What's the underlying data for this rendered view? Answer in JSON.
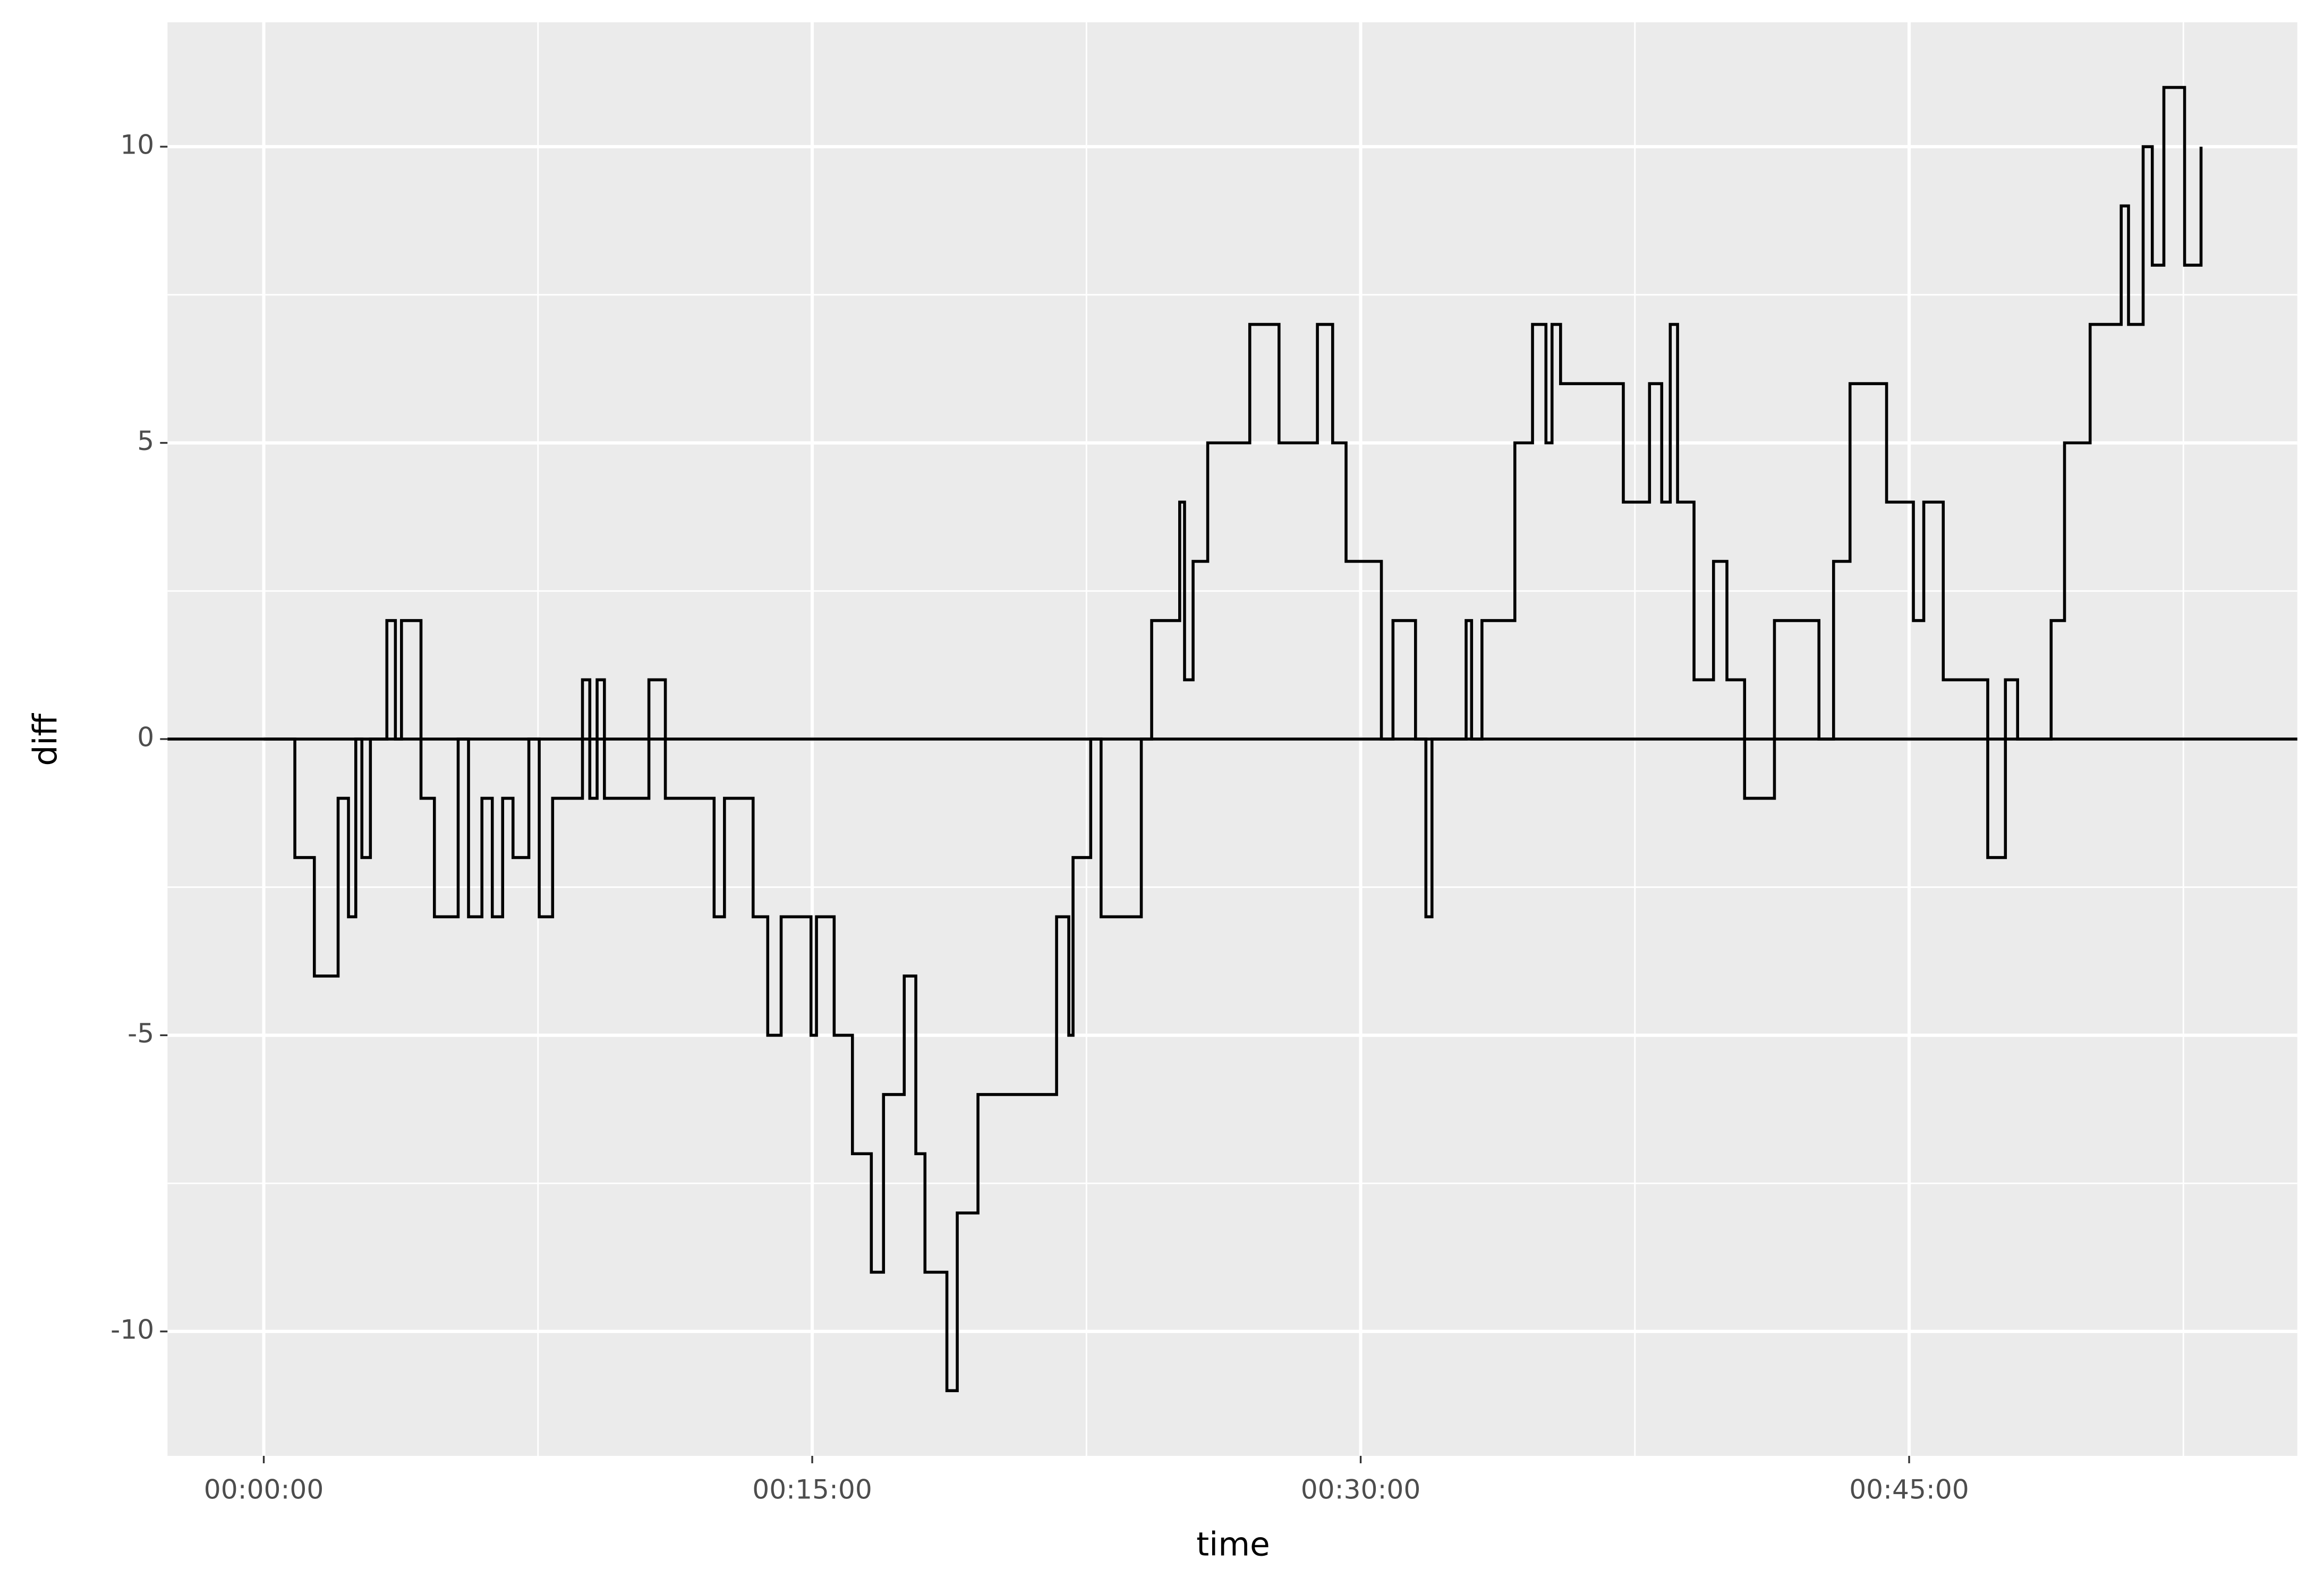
{
  "chart_data": {
    "type": "step",
    "x_label": "time",
    "y_label": "diff",
    "x": [
      0,
      51,
      83,
      122,
      139,
      151,
      161,
      175,
      202,
      216,
      226,
      258,
      280,
      319,
      336,
      358,
      375,
      392,
      409,
      435,
      452,
      474,
      523,
      535,
      547,
      559,
      632,
      659,
      739,
      756,
      803,
      827,
      849,
      898,
      907,
      936,
      966,
      997,
      1017,
      1051,
      1070,
      1085,
      1121,
      1138,
      1172,
      1301,
      1321,
      1328,
      1357,
      1374,
      1440,
      1457,
      1503,
      1511,
      1525,
      1549,
      1618,
      1666,
      1729,
      1754,
      1776,
      1834,
      1853,
      1890,
      1907,
      1917,
      1973,
      1982,
      1999,
      2053,
      2082,
      2104,
      2114,
      2128,
      2231,
      2274,
      2294,
      2308,
      2320,
      2347,
      2379,
      2401,
      2430,
      2479,
      2552,
      2576,
      2603,
      2663,
      2707,
      2724,
      2756,
      2829,
      2858,
      2878,
      2933,
      2955,
      2997,
      3048,
      3060,
      3084,
      3099,
      3118,
      3152,
      3179
    ],
    "y": [
      0,
      -2,
      -4,
      -1,
      -3,
      0,
      -2,
      0,
      2,
      0,
      2,
      -1,
      -3,
      0,
      -3,
      -1,
      -3,
      -1,
      -2,
      0,
      -3,
      -1,
      1,
      -1,
      1,
      -1,
      1,
      -1,
      -3,
      -1,
      -3,
      -5,
      -3,
      -5,
      -3,
      -5,
      -7,
      -9,
      -6,
      -4,
      -7,
      -9,
      -11,
      -8,
      -6,
      -3,
      -5,
      -2,
      0,
      -3,
      0,
      2,
      4,
      1,
      3,
      5,
      7,
      5,
      7,
      5,
      3,
      0,
      2,
      0,
      -3,
      0,
      2,
      0,
      2,
      5,
      7,
      5,
      7,
      6,
      4,
      6,
      4,
      7,
      4,
      1,
      3,
      1,
      -1,
      2,
      0,
      3,
      6,
      4,
      2,
      4,
      1,
      -2,
      1,
      0,
      2,
      5,
      7,
      9,
      7,
      10,
      8,
      11,
      8,
      10
    ],
    "color": "#000000",
    "hline": 0,
    "xlim": [
      -158,
      3337
    ],
    "ylim": [
      -12.1,
      12.1
    ],
    "xticks": [
      {
        "value": 0,
        "label": "00:00:00"
      },
      {
        "value": 900,
        "label": "00:15:00"
      },
      {
        "value": 1800,
        "label": "00:30:00"
      },
      {
        "value": 2700,
        "label": "00:45:00"
      }
    ],
    "yticks": [
      -10,
      -5,
      0,
      5,
      10
    ],
    "x_minor_ticks": [
      450,
      1350,
      2250,
      3150
    ],
    "y_minor_ticks": [
      -7.5,
      -2.5,
      2.5,
      7.5
    ],
    "grid": true
  }
}
